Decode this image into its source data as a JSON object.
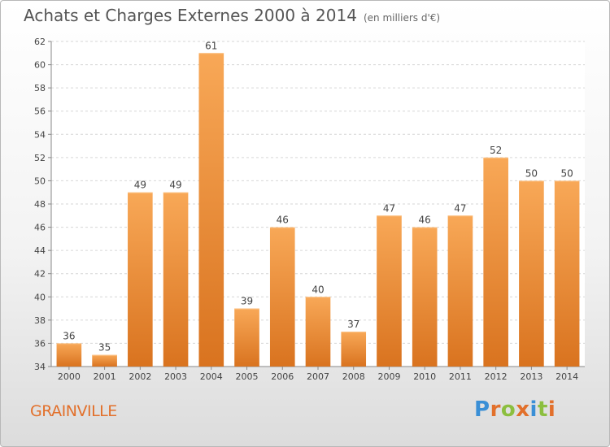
{
  "chart_data": {
    "type": "bar",
    "title": "Achats et Charges Externes 2000 à 2014",
    "subtitle": "(en milliers d'€)",
    "categories": [
      "2000",
      "2001",
      "2002",
      "2003",
      "2004",
      "2005",
      "2006",
      "2007",
      "2008",
      "2009",
      "2010",
      "2011",
      "2012",
      "2013",
      "2014"
    ],
    "values": [
      36,
      35,
      49,
      49,
      61,
      39,
      46,
      40,
      37,
      47,
      46,
      47,
      52,
      50,
      50
    ],
    "ylim": [
      34,
      62
    ],
    "yticks": [
      34,
      36,
      38,
      40,
      42,
      44,
      46,
      48,
      50,
      52,
      54,
      56,
      58,
      60,
      62
    ],
    "grid": true,
    "bar_color": "#f0913b"
  },
  "footer": {
    "place": "GRAINVILLE",
    "logo_text": "Proxiti"
  },
  "colors": {
    "title": "#555555",
    "place": "#e2702b",
    "logo": [
      "#3a8fd6",
      "#e2702b",
      "#8cbf3f",
      "#e2702b",
      "#3a8fd6",
      "#8cbf3f",
      "#e2702b"
    ]
  }
}
